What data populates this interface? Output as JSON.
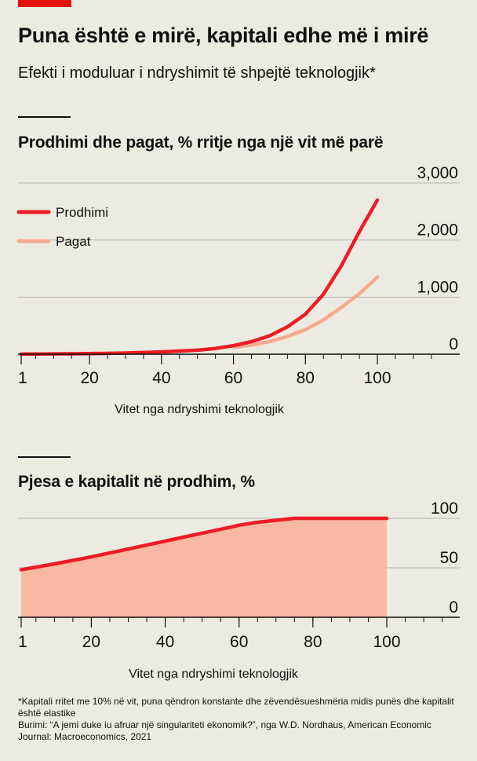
{
  "header": {
    "title": "Puna është e mirë, kapitali edhe më i mirë",
    "subtitle": "Efekti i moduluar i ndryshimit të shpejtë teknologjik*"
  },
  "colors": {
    "accent": "#e3120b",
    "output": "#ee1c25",
    "wages": "#f7a98f",
    "area": "#f9b8a1",
    "grid": "#b6b5ad",
    "background": "#ecebe2"
  },
  "chart_data": [
    {
      "type": "line",
      "title": "Prodhimi dhe pagat, % rritje nga një vit më parë",
      "xlabel": "Vitet nga ndryshimi teknologjik",
      "ylabel": "",
      "xlim": [
        1,
        100
      ],
      "ylim": [
        0,
        3000
      ],
      "x_ticks": [
        1,
        20,
        40,
        60,
        80,
        100
      ],
      "y_ticks": [
        0,
        1000,
        2000,
        3000
      ],
      "y_tick_labels": [
        "0",
        "1,000",
        "2,000",
        "3,000"
      ],
      "legend": "top-left",
      "grid": true,
      "series": [
        {
          "name": "Prodhimi",
          "color": "#ee1c25",
          "x": [
            1,
            10,
            20,
            30,
            40,
            50,
            55,
            60,
            65,
            70,
            75,
            80,
            85,
            90,
            95,
            100
          ],
          "y": [
            2,
            5,
            10,
            20,
            40,
            70,
            100,
            150,
            220,
            320,
            480,
            700,
            1050,
            1550,
            2150,
            2700
          ]
        },
        {
          "name": "Pagat",
          "color": "#f7a98f",
          "x": [
            60,
            65,
            70,
            75,
            80,
            85,
            90,
            95,
            100
          ],
          "y": [
            120,
            160,
            220,
            310,
            430,
            600,
            820,
            1060,
            1350
          ]
        }
      ]
    },
    {
      "type": "area",
      "title": "Pjesa e kapitalit në prodhim, %",
      "xlabel": "Vitet nga ndryshimi teknologjik",
      "ylabel": "",
      "xlim": [
        1,
        100
      ],
      "ylim": [
        0,
        100
      ],
      "x_ticks": [
        1,
        20,
        40,
        60,
        80,
        100
      ],
      "y_ticks": [
        0,
        50,
        100
      ],
      "y_tick_labels": [
        "0",
        "50",
        "100"
      ],
      "grid": true,
      "series": [
        {
          "name": "",
          "color": "#ee1c25",
          "fill": "#f9b8a1",
          "x": [
            1,
            10,
            20,
            30,
            40,
            50,
            55,
            60,
            65,
            70,
            75,
            80,
            90,
            100
          ],
          "y": [
            48,
            54,
            61,
            69,
            77,
            85,
            89,
            93,
            96,
            98,
            100,
            100,
            100,
            100
          ]
        }
      ]
    }
  ],
  "footnote": {
    "note": "*Kapitali rritet me 10% në vit, puna qëndron konstante dhe zëvendësueshmëria midis punës dhe kapitalit është elastike",
    "source": "Burimi: “A jemi duke iu afruar një singulariteti ekonomik?”, nga W.D. Nordhaus, American Economic Journal: Macroeconomics, 2021"
  }
}
